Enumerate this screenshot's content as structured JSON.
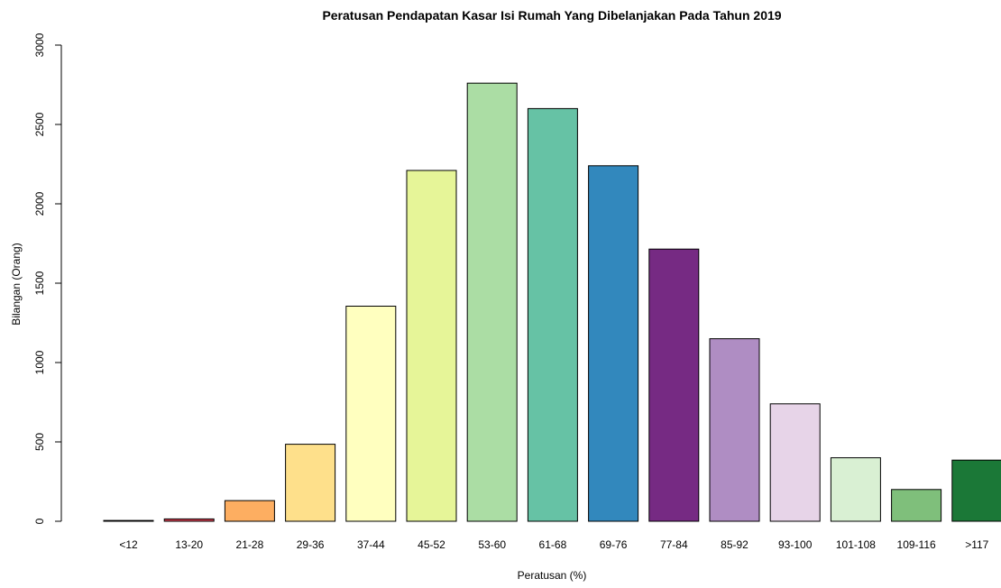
{
  "chart_data": {
    "type": "bar",
    "title": "Peratusan Pendapatan Kasar Isi Rumah Yang Dibelanjakan Pada Tahun 2019",
    "xlabel": "Peratusan (%)",
    "ylabel": "Bilangan (Orang)",
    "ylim": [
      0,
      3000
    ],
    "yticks": [
      0,
      500,
      1000,
      1500,
      2000,
      2500,
      3000
    ],
    "categories": [
      "<12",
      "13-20",
      "21-28",
      "29-36",
      "37-44",
      "45-52",
      "53-60",
      "61-68",
      "69-76",
      "77-84",
      "85-92",
      "93-100",
      "101-108",
      "109-116",
      ">117"
    ],
    "values": [
      5,
      15,
      130,
      485,
      1355,
      2210,
      2760,
      2600,
      2240,
      1715,
      1150,
      740,
      400,
      200,
      385
    ],
    "colors": [
      "#9E0142",
      "#D53E4F",
      "#FDAE61",
      "#FEE08B",
      "#FFFFBF",
      "#E6F598",
      "#ABDDA4",
      "#66C2A5",
      "#3288BD",
      "#762A83",
      "#AF8DC3",
      "#E7D4E8",
      "#D9F0D3",
      "#7FBF7B",
      "#1B7837"
    ],
    "grid": false,
    "legend": "none"
  }
}
